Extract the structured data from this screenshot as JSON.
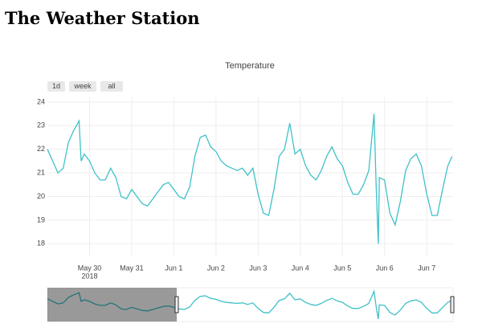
{
  "page_title": "The Weather Station",
  "range_buttons": [
    "1d",
    "week",
    "all"
  ],
  "chart_data": {
    "type": "line",
    "title": "Temperature",
    "x": [
      "2018-05-29T00:00",
      "2018-05-29T03:00",
      "2018-05-29T06:00",
      "2018-05-29T09:00",
      "2018-05-29T12:00",
      "2018-05-29T15:00",
      "2018-05-29T18:00",
      "2018-05-29T19:12",
      "2018-05-29T21:00",
      "2018-05-30T00:00",
      "2018-05-30T03:00",
      "2018-05-30T06:00",
      "2018-05-30T09:00",
      "2018-05-30T12:00",
      "2018-05-30T15:00",
      "2018-05-30T18:00",
      "2018-05-30T21:00",
      "2018-05-31T00:00",
      "2018-05-31T03:00",
      "2018-05-31T06:00",
      "2018-05-31T09:00",
      "2018-05-31T12:00",
      "2018-05-31T15:00",
      "2018-05-31T18:00",
      "2018-05-31T21:00",
      "2018-06-01T00:00",
      "2018-06-01T03:00",
      "2018-06-01T06:00",
      "2018-06-01T09:00",
      "2018-06-01T12:00",
      "2018-06-01T15:00",
      "2018-06-01T18:00",
      "2018-06-01T21:00",
      "2018-06-02T00:00",
      "2018-06-02T03:00",
      "2018-06-02T06:00",
      "2018-06-02T09:00",
      "2018-06-02T12:00",
      "2018-06-02T15:00",
      "2018-06-02T18:00",
      "2018-06-02T21:00",
      "2018-06-03T00:00",
      "2018-06-03T03:00",
      "2018-06-03T06:00",
      "2018-06-03T09:00",
      "2018-06-03T12:00",
      "2018-06-03T15:00",
      "2018-06-03T18:00",
      "2018-06-03T21:00",
      "2018-06-04T00:00",
      "2018-06-04T03:00",
      "2018-06-04T06:00",
      "2018-06-04T09:00",
      "2018-06-04T12:00",
      "2018-06-04T15:00",
      "2018-06-04T18:00",
      "2018-06-04T21:00",
      "2018-06-05T00:00",
      "2018-06-05T03:00",
      "2018-06-05T06:00",
      "2018-06-05T09:00",
      "2018-06-05T12:00",
      "2018-06-05T15:00",
      "2018-06-05T18:00",
      "2018-06-05T19:12",
      "2018-06-05T20:24",
      "2018-06-05T21:00",
      "2018-06-06T00:00",
      "2018-06-06T03:00",
      "2018-06-06T06:00",
      "2018-06-06T09:00",
      "2018-06-06T12:00",
      "2018-06-06T15:00",
      "2018-06-06T18:00",
      "2018-06-06T21:00",
      "2018-06-07T00:00",
      "2018-06-07T03:00",
      "2018-06-07T06:00",
      "2018-06-07T09:00",
      "2018-06-07T12:00",
      "2018-06-07T14:24"
    ],
    "series": [
      {
        "name": "Temperature",
        "color": "#3fc1c9",
        "values": [
          22.0,
          21.5,
          21.0,
          21.2,
          22.3,
          22.8,
          23.2,
          21.5,
          21.8,
          21.5,
          21.0,
          20.7,
          20.7,
          21.2,
          20.8,
          20.0,
          19.9,
          20.3,
          20.0,
          19.7,
          19.6,
          19.9,
          20.2,
          20.5,
          20.6,
          20.3,
          20.0,
          19.9,
          20.4,
          21.7,
          22.5,
          22.6,
          22.1,
          21.9,
          21.5,
          21.3,
          21.2,
          21.1,
          21.2,
          20.9,
          21.2,
          20.1,
          19.3,
          19.2,
          20.3,
          21.7,
          22.0,
          23.1,
          21.8,
          22.0,
          21.3,
          20.9,
          20.7,
          21.1,
          21.7,
          22.1,
          21.6,
          21.3,
          20.6,
          20.1,
          20.1,
          20.5,
          21.1,
          23.5,
          20.5,
          18.0,
          20.8,
          20.7,
          19.3,
          18.8,
          19.8,
          21.1,
          21.6,
          21.8,
          21.3,
          20.1,
          19.2,
          19.2,
          20.3,
          21.3,
          21.7
        ]
      }
    ],
    "xlim": [
      "2018-05-29T00:00",
      "2018-06-07T15:00"
    ],
    "xticks": [
      {
        "value": "2018-05-30T00:00",
        "label": "May 30"
      },
      {
        "value": "2018-05-31T00:00",
        "label": "May 31"
      },
      {
        "value": "2018-06-01T00:00",
        "label": "Jun 1"
      },
      {
        "value": "2018-06-02T00:00",
        "label": "Jun 2"
      },
      {
        "value": "2018-06-03T00:00",
        "label": "Jun 3"
      },
      {
        "value": "2018-06-04T00:00",
        "label": "Jun 4"
      },
      {
        "value": "2018-06-05T00:00",
        "label": "Jun 5"
      },
      {
        "value": "2018-06-06T00:00",
        "label": "Jun 6"
      },
      {
        "value": "2018-06-07T00:00",
        "label": "Jun 7"
      }
    ],
    "x_year_label": "2018",
    "ylim": [
      17.5,
      24.2
    ],
    "yticks": [
      18,
      19,
      20,
      21,
      22,
      23,
      24
    ],
    "grid": true
  }
}
